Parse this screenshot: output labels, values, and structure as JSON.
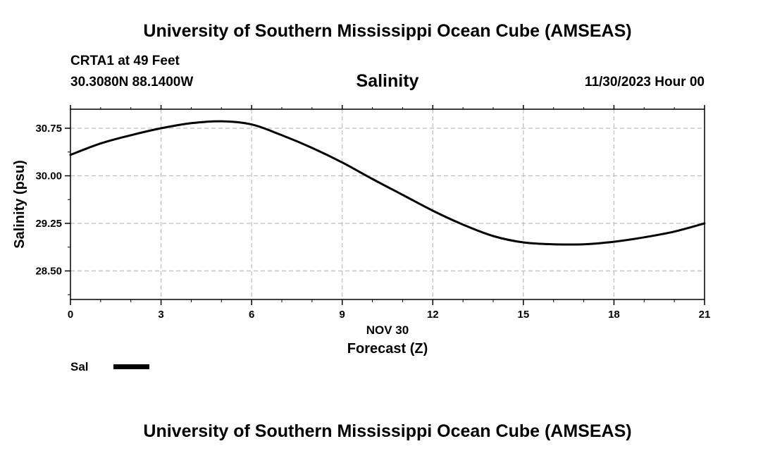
{
  "header": {
    "title": "University of Southern Mississippi Ocean Cube (AMSEAS)",
    "footer_title": "University of Southern Mississippi Ocean Cube (AMSEAS)"
  },
  "station": {
    "name": "CRTA1 at 49 Feet",
    "coordinates": "30.3080N  88.1400W",
    "datetime": "11/30/2023 Hour 00"
  },
  "chart_data": {
    "type": "line",
    "title": "Salinity",
    "xlabel": "Forecast (Z)",
    "xdate_label": "NOV 30",
    "ylabel": "Salinity (psu)",
    "xlim": [
      0,
      21
    ],
    "ylim": [
      28.05,
      31.05
    ],
    "xticks": [
      0,
      3,
      6,
      9,
      12,
      15,
      18,
      21
    ],
    "xtick_labels": [
      "0",
      "3",
      "6",
      "9",
      "12",
      "15",
      "18",
      "21"
    ],
    "yticks": [
      28.5,
      29.25,
      30.0,
      30.75
    ],
    "ytick_labels": [
      "28.50",
      "29.25",
      "30.00",
      "30.75"
    ],
    "grid": true,
    "series": [
      {
        "name": "Sal",
        "color": "#000000",
        "x": [
          0,
          1,
          2,
          3,
          4,
          5,
          6,
          7,
          8,
          9,
          10,
          11,
          12,
          13,
          14,
          15,
          16,
          17,
          18,
          19,
          20,
          21
        ],
        "values": [
          30.33,
          30.51,
          30.64,
          30.75,
          30.83,
          30.86,
          30.81,
          30.64,
          30.44,
          30.21,
          29.95,
          29.7,
          29.45,
          29.23,
          29.05,
          28.95,
          28.92,
          28.92,
          28.96,
          29.03,
          29.12,
          29.25
        ]
      }
    ]
  },
  "legend": {
    "label": "Sal"
  }
}
